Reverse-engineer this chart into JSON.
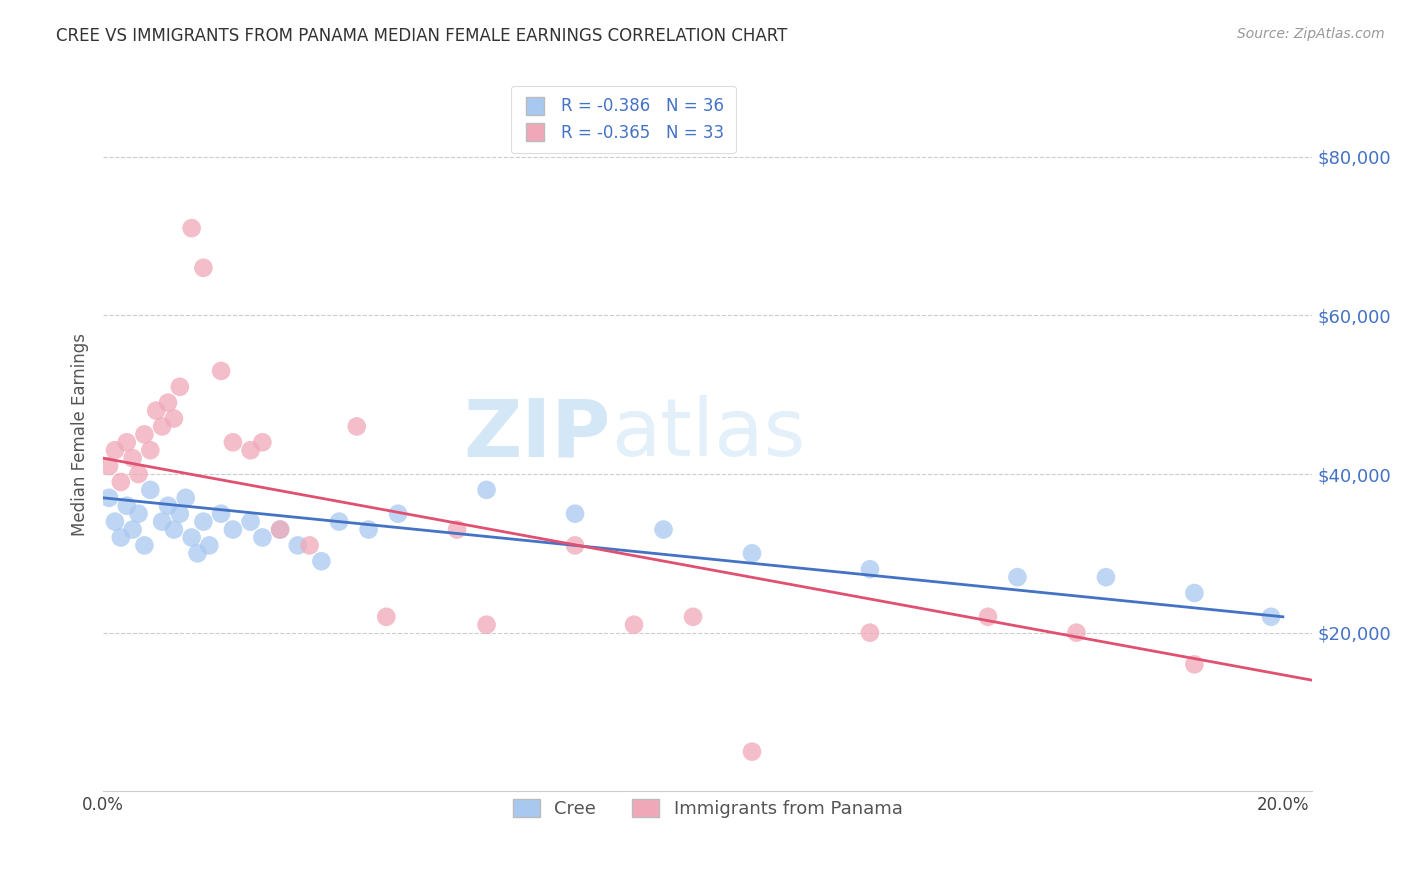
{
  "title": "CREE VS IMMIGRANTS FROM PANAMA MEDIAN FEMALE EARNINGS CORRELATION CHART",
  "source": "Source: ZipAtlas.com",
  "ylabel": "Median Female Earnings",
  "xlim": [
    0.0,
    0.205
  ],
  "ylim": [
    0,
    90000
  ],
  "yticks": [
    20000,
    40000,
    60000,
    80000
  ],
  "ytick_labels": [
    "$20,000",
    "$40,000",
    "$60,000",
    "$80,000"
  ],
  "xticks": [
    0.0,
    0.05,
    0.1,
    0.15,
    0.2
  ],
  "xtick_labels": [
    "0.0%",
    "",
    "",
    "",
    "20.0%"
  ],
  "cree_color": "#a8c8f0",
  "panama_color": "#f0a8b8",
  "cree_line_color": "#4472c4",
  "panama_line_color": "#e05070",
  "watermark_zip": "ZIP",
  "watermark_atlas": "atlas",
  "background_color": "#ffffff",
  "grid_color": "#cccccc",
  "cree_x": [
    0.001,
    0.002,
    0.003,
    0.004,
    0.005,
    0.006,
    0.007,
    0.008,
    0.01,
    0.011,
    0.012,
    0.013,
    0.014,
    0.015,
    0.016,
    0.017,
    0.018,
    0.02,
    0.022,
    0.025,
    0.027,
    0.03,
    0.033,
    0.037,
    0.04,
    0.045,
    0.05,
    0.065,
    0.08,
    0.095,
    0.11,
    0.13,
    0.155,
    0.17,
    0.185,
    0.198
  ],
  "cree_y": [
    37000,
    34000,
    32000,
    36000,
    33000,
    35000,
    31000,
    38000,
    34000,
    36000,
    33000,
    35000,
    37000,
    32000,
    30000,
    34000,
    31000,
    35000,
    33000,
    34000,
    32000,
    33000,
    31000,
    29000,
    34000,
    33000,
    35000,
    38000,
    35000,
    33000,
    30000,
    28000,
    27000,
    27000,
    25000,
    22000
  ],
  "panama_x": [
    0.001,
    0.002,
    0.003,
    0.004,
    0.005,
    0.006,
    0.007,
    0.008,
    0.009,
    0.01,
    0.011,
    0.012,
    0.013,
    0.015,
    0.017,
    0.02,
    0.022,
    0.025,
    0.027,
    0.03,
    0.035,
    0.043,
    0.048,
    0.065,
    0.09,
    0.11,
    0.13,
    0.15,
    0.165,
    0.185,
    0.06,
    0.08,
    0.1
  ],
  "panama_y": [
    41000,
    43000,
    39000,
    44000,
    42000,
    40000,
    45000,
    43000,
    48000,
    46000,
    49000,
    47000,
    51000,
    71000,
    66000,
    53000,
    44000,
    43000,
    44000,
    33000,
    31000,
    46000,
    22000,
    21000,
    21000,
    5000,
    20000,
    22000,
    20000,
    16000,
    33000,
    31000,
    22000
  ]
}
